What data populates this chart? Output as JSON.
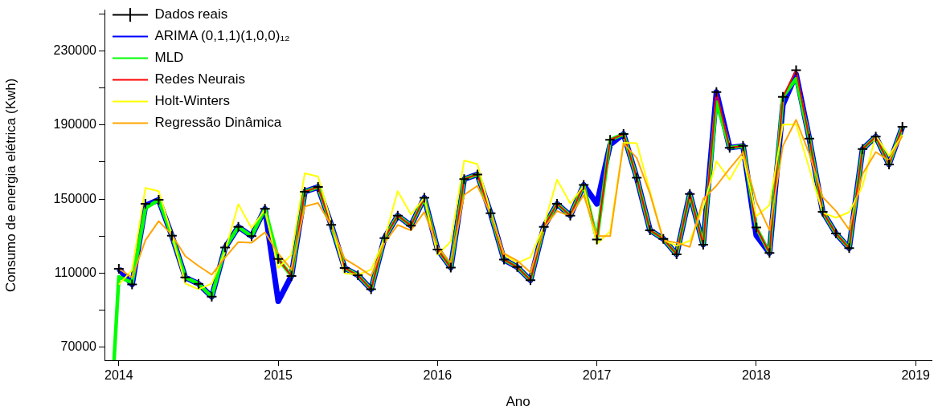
{
  "chart_data": {
    "type": "line",
    "xlabel": "Ano",
    "ylabel": "Consumo de energia elétrica (Kwh)",
    "legend": "top left",
    "grid": false,
    "xlim": [
      2013.91,
      2019.1
    ],
    "xticks": [
      2014,
      2015,
      2016,
      2017,
      2018,
      2019
    ],
    "ylim": [
      63000,
      252000
    ],
    "yticks": [
      70000,
      {
        "value": 90000,
        "label": null
      },
      110000,
      {
        "value": 130000,
        "label": null
      },
      150000,
      {
        "value": 170000,
        "label": null
      },
      190000,
      {
        "value": 210000,
        "label": null
      },
      230000,
      {
        "value": 250000,
        "label": null
      }
    ],
    "x": [
      2014,
      2014.083,
      2014.167,
      2014.25,
      2014.333,
      2014.417,
      2014.5,
      2014.583,
      2014.667,
      2014.75,
      2014.833,
      2014.917,
      2015,
      2015.083,
      2015.167,
      2015.25,
      2015.333,
      2015.417,
      2015.5,
      2015.583,
      2015.667,
      2015.75,
      2015.833,
      2015.917,
      2016,
      2016.083,
      2016.167,
      2016.25,
      2016.333,
      2016.417,
      2016.5,
      2016.583,
      2016.667,
      2016.75,
      2016.833,
      2016.917,
      2017,
      2017.083,
      2017.167,
      2017.25,
      2017.333,
      2017.417,
      2017.5,
      2017.583,
      2017.667,
      2017.75,
      2017.833,
      2017.917,
      2018,
      2018.083,
      2018.167,
      2018.25,
      2018.333,
      2018.417,
      2018.5,
      2018.583,
      2018.667,
      2018.75,
      2018.833,
      2018.917
    ],
    "series": [
      {
        "name": "Dados reais",
        "type": "scatter",
        "marker": "cross",
        "color": "#000000",
        "values": [
          112400,
          103900,
          147400,
          149600,
          130200,
          107700,
          104300,
          97300,
          123800,
          135000,
          130000,
          144700,
          117700,
          108500,
          154000,
          156500,
          136100,
          112800,
          108900,
          101300,
          128900,
          141100,
          135700,
          150700,
          122800,
          113000,
          160800,
          163300,
          142400,
          117300,
          113300,
          106200,
          135000,
          147400,
          141100,
          157600,
          128200,
          182000,
          185100,
          161500,
          133200,
          128500,
          120200,
          152800,
          125400,
          207800,
          177700,
          178700,
          134700,
          120900,
          205200,
          219600,
          182600,
          143100,
          131400,
          123500,
          177000,
          183700,
          168700,
          189000
        ]
      },
      {
        "name": "ARIMA (0,1,1)(1,0,0)₁₂",
        "type": "line",
        "marker": "none",
        "color": "#0000ff",
        "values": [
          112400,
          103900,
          146500,
          149600,
          130200,
          107700,
          104300,
          97300,
          123800,
          135000,
          130000,
          144700,
          94800,
          108500,
          154000,
          156500,
          136100,
          112800,
          108900,
          101300,
          128900,
          141100,
          135700,
          150700,
          122800,
          113000,
          160800,
          163300,
          142400,
          117300,
          113300,
          106200,
          135000,
          147400,
          141100,
          157600,
          147400,
          179400,
          185100,
          161500,
          133200,
          128500,
          120200,
          152800,
          125400,
          207800,
          177700,
          178700,
          130400,
          120900,
          200900,
          217400,
          182600,
          143100,
          131400,
          123500,
          177000,
          183700,
          168700,
          189000
        ]
      },
      {
        "name": "MLD",
        "type": "line",
        "marker": "none",
        "color": "#00ff00",
        "x": [
          2013.97,
          2014,
          2014.083,
          2014.167,
          2014.25,
          2014.333,
          2014.417,
          2014.5,
          2014.583,
          2014.667,
          2014.75,
          2014.833,
          2014.917,
          2015,
          2015.083,
          2015.167,
          2015.25,
          2015.333,
          2015.417,
          2015.5,
          2015.583,
          2015.667,
          2015.75,
          2015.833,
          2015.917,
          2016,
          2016.083,
          2016.167,
          2016.25,
          2016.333,
          2016.417,
          2016.5,
          2016.583,
          2016.667,
          2016.75,
          2016.833,
          2016.917,
          2017,
          2017.083,
          2017.167,
          2017.25,
          2017.333,
          2017.417,
          2017.5,
          2017.583,
          2017.667,
          2017.75,
          2017.833,
          2017.917,
          2018,
          2018.083,
          2018.167,
          2018.25,
          2018.333,
          2018.417,
          2018.5,
          2018.583,
          2018.667,
          2018.75,
          2018.833,
          2018.917
        ],
        "values": [
          63000,
          108000,
          104900,
          145000,
          149600,
          130200,
          107700,
          104300,
          97300,
          123800,
          135000,
          130000,
          144700,
          117700,
          108500,
          154000,
          156500,
          136100,
          112800,
          108900,
          101300,
          128900,
          141100,
          135700,
          150700,
          122800,
          113000,
          160800,
          163300,
          142400,
          117300,
          113300,
          106200,
          135000,
          147400,
          141100,
          157600,
          128200,
          182000,
          185100,
          161500,
          133200,
          128500,
          120200,
          152800,
          125400,
          202400,
          177700,
          178700,
          134700,
          120900,
          205200,
          215000,
          182600,
          143100,
          131400,
          123500,
          177000,
          183700,
          168700,
          189000
        ]
      },
      {
        "name": "Redes Neurais",
        "type": "line",
        "marker": "none",
        "color": "#ff0000",
        "x": [
          2015,
          2015.083,
          2015.167,
          2015.25,
          2015.333,
          2015.417,
          2015.5,
          2015.583,
          2015.667,
          2015.75,
          2015.833,
          2015.917,
          2016,
          2016.083,
          2016.167,
          2016.25,
          2016.333,
          2016.417,
          2016.5,
          2016.583,
          2016.667,
          2016.75,
          2016.833,
          2016.917,
          2017,
          2017.083,
          2017.167,
          2017.25,
          2017.333,
          2017.417,
          2017.5,
          2017.583,
          2017.667,
          2017.75,
          2017.833,
          2017.917,
          2018,
          2018.083,
          2018.167,
          2018.25,
          2018.333,
          2018.417,
          2018.5,
          2018.583,
          2018.667,
          2018.75,
          2018.833,
          2018.917
        ],
        "values": [
          117700,
          108500,
          154000,
          156500,
          136100,
          112800,
          108900,
          101300,
          128900,
          141100,
          135700,
          150700,
          122800,
          113000,
          160800,
          163300,
          142400,
          117300,
          113300,
          106200,
          135000,
          147400,
          141100,
          157600,
          128200,
          182000,
          185100,
          161500,
          133200,
          128500,
          120200,
          152800,
          125400,
          207800,
          177700,
          178700,
          134700,
          120900,
          205200,
          219600,
          182600,
          143100,
          131400,
          123500,
          177000,
          183700,
          168700,
          189000
        ]
      },
      {
        "name": "Holt-Winters",
        "type": "line",
        "marker": "none",
        "color": "#ffff00",
        "values": [
          103900,
          111600,
          156000,
          154300,
          130700,
          104400,
          101300,
          104400,
          122000,
          147200,
          134300,
          144300,
          112800,
          119900,
          163900,
          162200,
          137100,
          109900,
          109200,
          111900,
          128500,
          154300,
          141700,
          150700,
          119900,
          127100,
          170800,
          168900,
          142900,
          119900,
          115600,
          118600,
          135700,
          160500,
          147600,
          157200,
          125900,
          132500,
          180400,
          180100,
          154300,
          127800,
          124900,
          127400,
          145700,
          170400,
          160500,
          173300,
          140700,
          146700,
          190200,
          190200,
          166500,
          142600,
          140000,
          142900,
          157200,
          184400,
          173400,
          184700
        ]
      },
      {
        "name": "Regressão Dinâmica",
        "type": "line",
        "marker": "none",
        "color": "#ffa500",
        "values": [
          112400,
          107700,
          127800,
          138100,
          130700,
          119200,
          113900,
          109200,
          118500,
          126800,
          126400,
          132100,
          120600,
          112000,
          146000,
          147900,
          135700,
          117700,
          113400,
          108500,
          126400,
          136000,
          133100,
          143100,
          124200,
          115600,
          152200,
          157200,
          142100,
          120600,
          116800,
          110400,
          134500,
          143600,
          140700,
          152200,
          130000,
          130000,
          180100,
          172200,
          152900,
          127800,
          126400,
          124200,
          150000,
          157200,
          166500,
          175100,
          148600,
          133200,
          178700,
          192800,
          174400,
          151000,
          143600,
          133500,
          163600,
          175400,
          170800,
          184200
        ]
      }
    ]
  }
}
